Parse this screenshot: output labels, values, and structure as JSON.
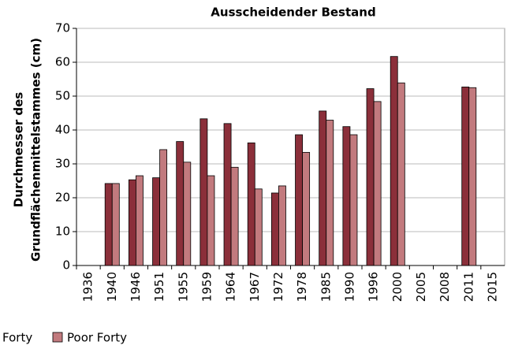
{
  "chart_data": {
    "type": "bar",
    "title": "Ausscheidender Bestand",
    "ylabel": [
      "Durchmesser des",
      "Grundflächenmittelstammes (cm)"
    ],
    "categories": [
      "1936",
      "1940",
      "1946",
      "1951",
      "1955",
      "1959",
      "1964",
      "1967",
      "1972",
      "1978",
      "1985",
      "1990",
      "1996",
      "2000",
      "2005",
      "2008",
      "2011",
      "2015"
    ],
    "series": [
      {
        "name": "Forty",
        "color": "#8b2f3a",
        "values": [
          null,
          24.2,
          25.3,
          25.9,
          36.6,
          43.3,
          41.9,
          36.2,
          21.4,
          38.6,
          45.6,
          41.0,
          52.2,
          61.7,
          null,
          null,
          52.7,
          null
        ]
      },
      {
        "name": "Poor Forty",
        "color": "#c27a7e",
        "values": [
          null,
          24.2,
          26.5,
          34.2,
          30.5,
          26.5,
          29.0,
          22.6,
          23.5,
          33.4,
          42.9,
          38.6,
          48.4,
          53.9,
          null,
          null,
          52.5,
          null
        ]
      }
    ],
    "ylim": [
      0,
      70
    ],
    "yticks": [
      0,
      10,
      20,
      30,
      40,
      50,
      60,
      70
    ],
    "grid": true
  }
}
